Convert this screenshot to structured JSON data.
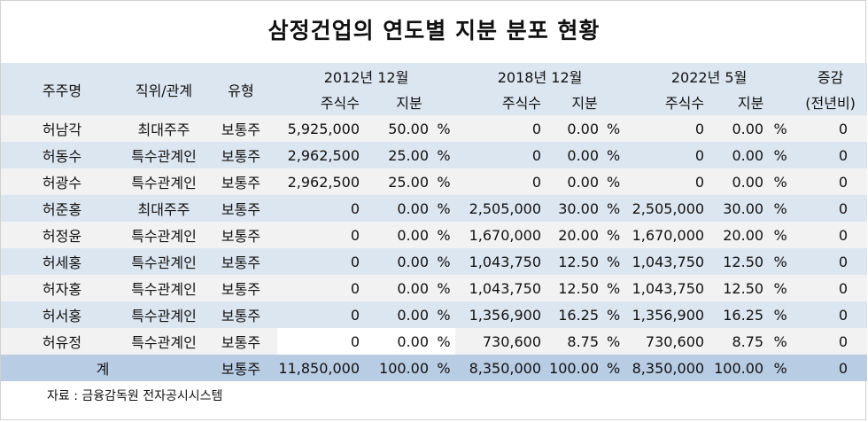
{
  "title": "삼정건업의 연도별 지분 분포 현황",
  "header": {
    "shareholder": "주주명",
    "position": "직위/관계",
    "type": "유형",
    "periods": [
      "2012년 12월",
      "2018년 12월",
      "2022년 5월"
    ],
    "shares": "주식수",
    "stake": "지분",
    "change": "증감",
    "change_sub": "(전년비)"
  },
  "percent_sign": "%",
  "rows": [
    {
      "name": "허남각",
      "position": "최대주주",
      "type": "보통주",
      "s2012": "5,925,000",
      "p2012": "50.00",
      "s2018": "0",
      "p2018": "0.00",
      "s2022": "0",
      "p2022": "0.00",
      "change": "0"
    },
    {
      "name": "허동수",
      "position": "특수관계인",
      "type": "보통주",
      "s2012": "2,962,500",
      "p2012": "25.00",
      "s2018": "0",
      "p2018": "0.00",
      "s2022": "0",
      "p2022": "0.00",
      "change": "0"
    },
    {
      "name": "허광수",
      "position": "특수관계인",
      "type": "보통주",
      "s2012": "2,962,500",
      "p2012": "25.00",
      "s2018": "0",
      "p2018": "0.00",
      "s2022": "0",
      "p2022": "0.00",
      "change": "0"
    },
    {
      "name": "허준홍",
      "position": "최대주주",
      "type": "보통주",
      "s2012": "0",
      "p2012": "0.00",
      "s2018": "2,505,000",
      "p2018": "30.00",
      "s2022": "2,505,000",
      "p2022": "30.00",
      "change": "0"
    },
    {
      "name": "허정윤",
      "position": "특수관계인",
      "type": "보통주",
      "s2012": "0",
      "p2012": "0.00",
      "s2018": "1,670,000",
      "p2018": "20.00",
      "s2022": "1,670,000",
      "p2022": "20.00",
      "change": "0"
    },
    {
      "name": "허세홍",
      "position": "특수관계인",
      "type": "보통주",
      "s2012": "0",
      "p2012": "0.00",
      "s2018": "1,043,750",
      "p2018": "12.50",
      "s2022": "1,043,750",
      "p2022": "12.50",
      "change": "0"
    },
    {
      "name": "허자홍",
      "position": "특수관계인",
      "type": "보통주",
      "s2012": "0",
      "p2012": "0.00",
      "s2018": "1,043,750",
      "p2018": "12.50",
      "s2022": "1,043,750",
      "p2022": "12.50",
      "change": "0"
    },
    {
      "name": "허서홍",
      "position": "특수관계인",
      "type": "보통주",
      "s2012": "0",
      "p2012": "0.00",
      "s2018": "1,356,900",
      "p2018": "16.25",
      "s2022": "1,356,900",
      "p2022": "16.25",
      "change": "0"
    },
    {
      "name": "허유정",
      "position": "특수관계인",
      "type": "보통주",
      "s2012": "0",
      "p2012": "0.00",
      "s2018": "730,600",
      "p2018": "8.75",
      "s2022": "730,600",
      "p2022": "8.75",
      "change": "0"
    }
  ],
  "total": {
    "name": "계",
    "type": "보통주",
    "s2012": "11,850,000",
    "p2012": "100.00",
    "s2018": "8,350,000",
    "p2018": "100.00",
    "s2022": "8,350,000",
    "p2022": "100.00",
    "change": "0"
  },
  "source": "자료 : 금융감독원 전자공시시스템",
  "colors": {
    "header_bg": "#dce6f1",
    "row_alt_bg": "#dce6f1",
    "row_plain_bg": "#f2f2f2",
    "total_bg": "#b8cce4"
  }
}
